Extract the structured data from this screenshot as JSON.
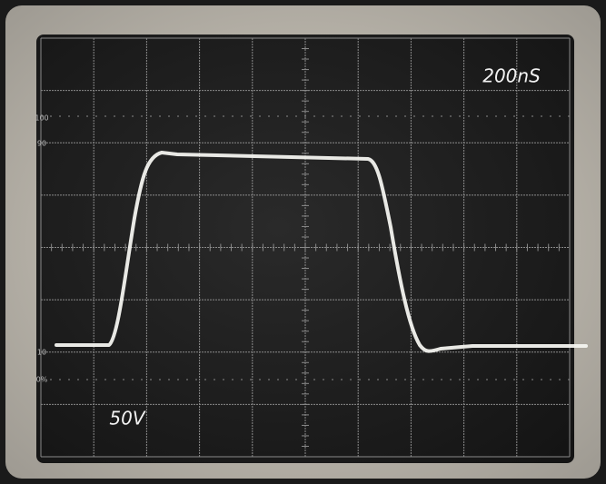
{
  "screen": {
    "timebase": "200nS",
    "volts": "50V",
    "scale_labels": [
      "100",
      "90",
      "10",
      "0%"
    ]
  }
}
